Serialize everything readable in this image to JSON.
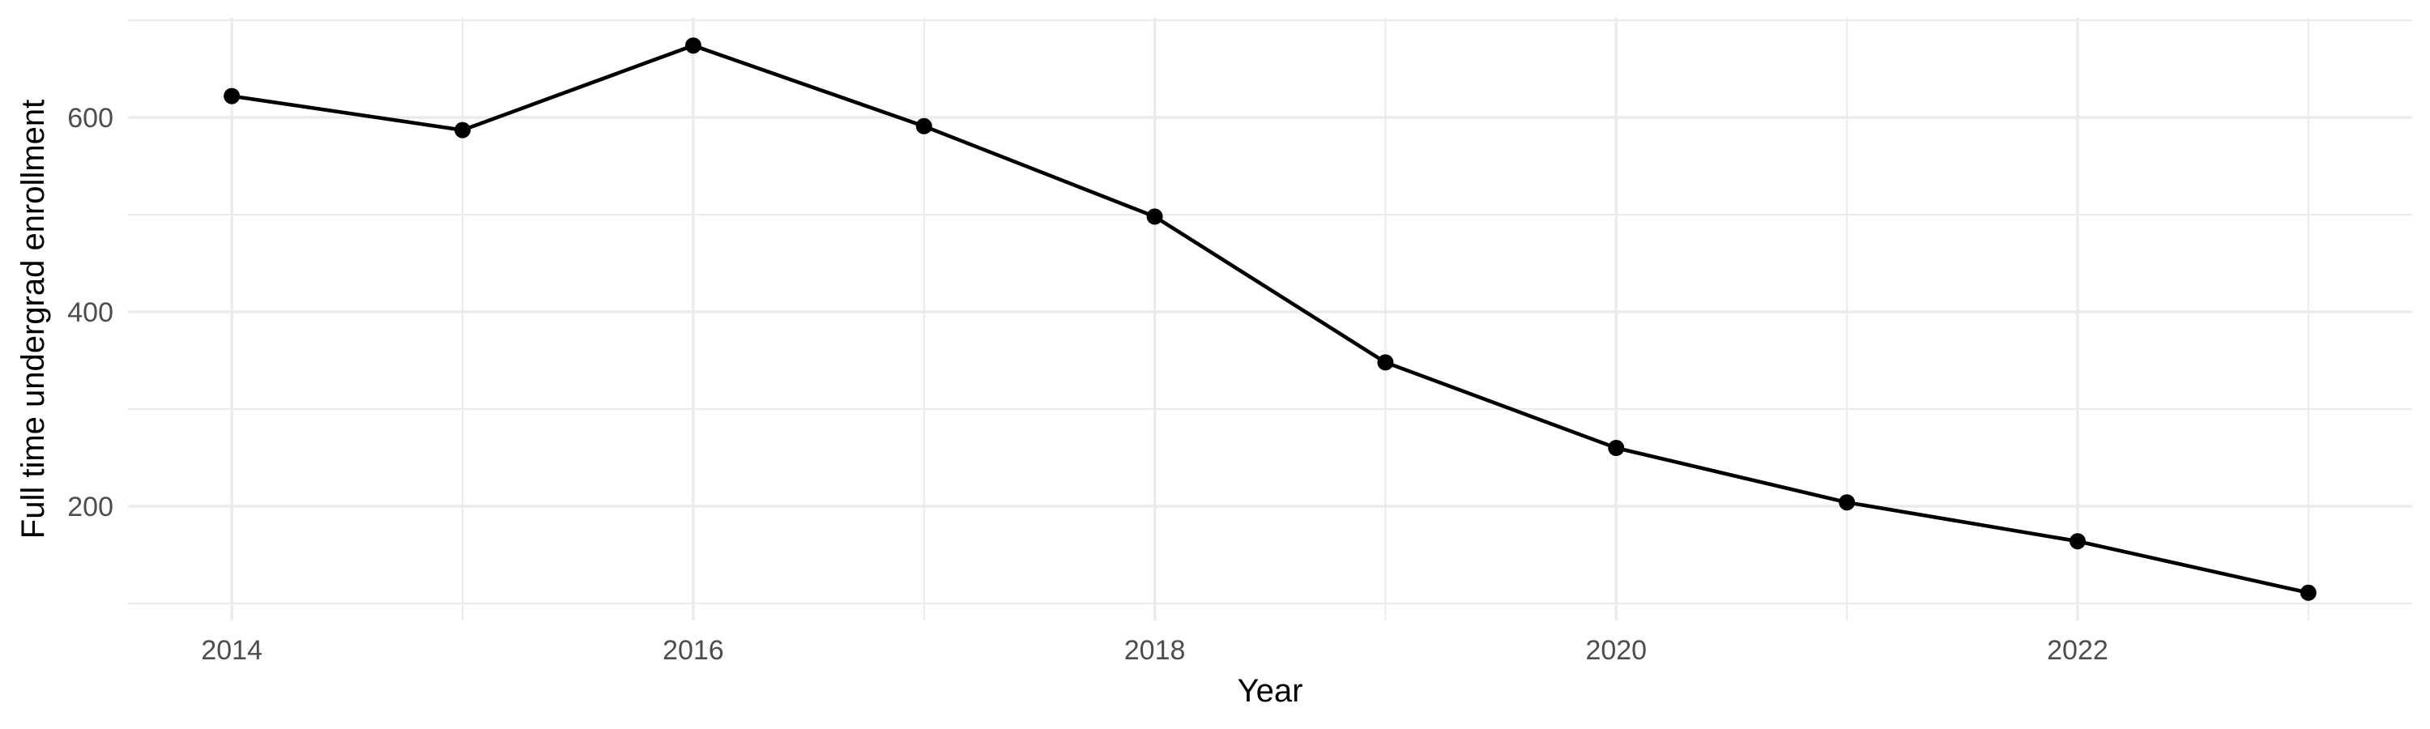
{
  "chart_data": {
    "type": "line",
    "title": "",
    "xlabel": "Year",
    "ylabel": "Full time undergrad enrollment",
    "series": [
      {
        "name": "Full time undergrad enrollment",
        "x": [
          2014,
          2015,
          2016,
          2017,
          2018,
          2019,
          2020,
          2021,
          2022,
          2023
        ],
        "values": [
          622,
          587,
          674,
          591,
          498,
          348,
          260,
          204,
          164,
          111
        ]
      }
    ],
    "x_major_ticks": [
      2014,
      2016,
      2018,
      2020,
      2022
    ],
    "x_tick_labels": [
      "2014",
      "2016",
      "2018",
      "2020",
      "2022"
    ],
    "x_minor_gridlines": [
      2015,
      2017,
      2019,
      2021,
      2023
    ],
    "y_major_ticks": [
      200,
      400,
      600
    ],
    "y_tick_labels": [
      "200",
      "400",
      "600"
    ],
    "y_minor_gridlines": [
      100,
      300,
      500,
      700
    ],
    "xlim": [
      2013.55,
      2023.45
    ],
    "ylim": [
      82.5,
      702.5
    ],
    "grid": "on",
    "legend": "none",
    "marker": "circle",
    "style": {
      "line_color": "#000000",
      "point_color": "#000000",
      "grid_color": "#EBEBEB",
      "tick_label_color": "#4D4D4D",
      "axis_title_color": "#000000",
      "background_color": "#FFFFFF"
    }
  }
}
